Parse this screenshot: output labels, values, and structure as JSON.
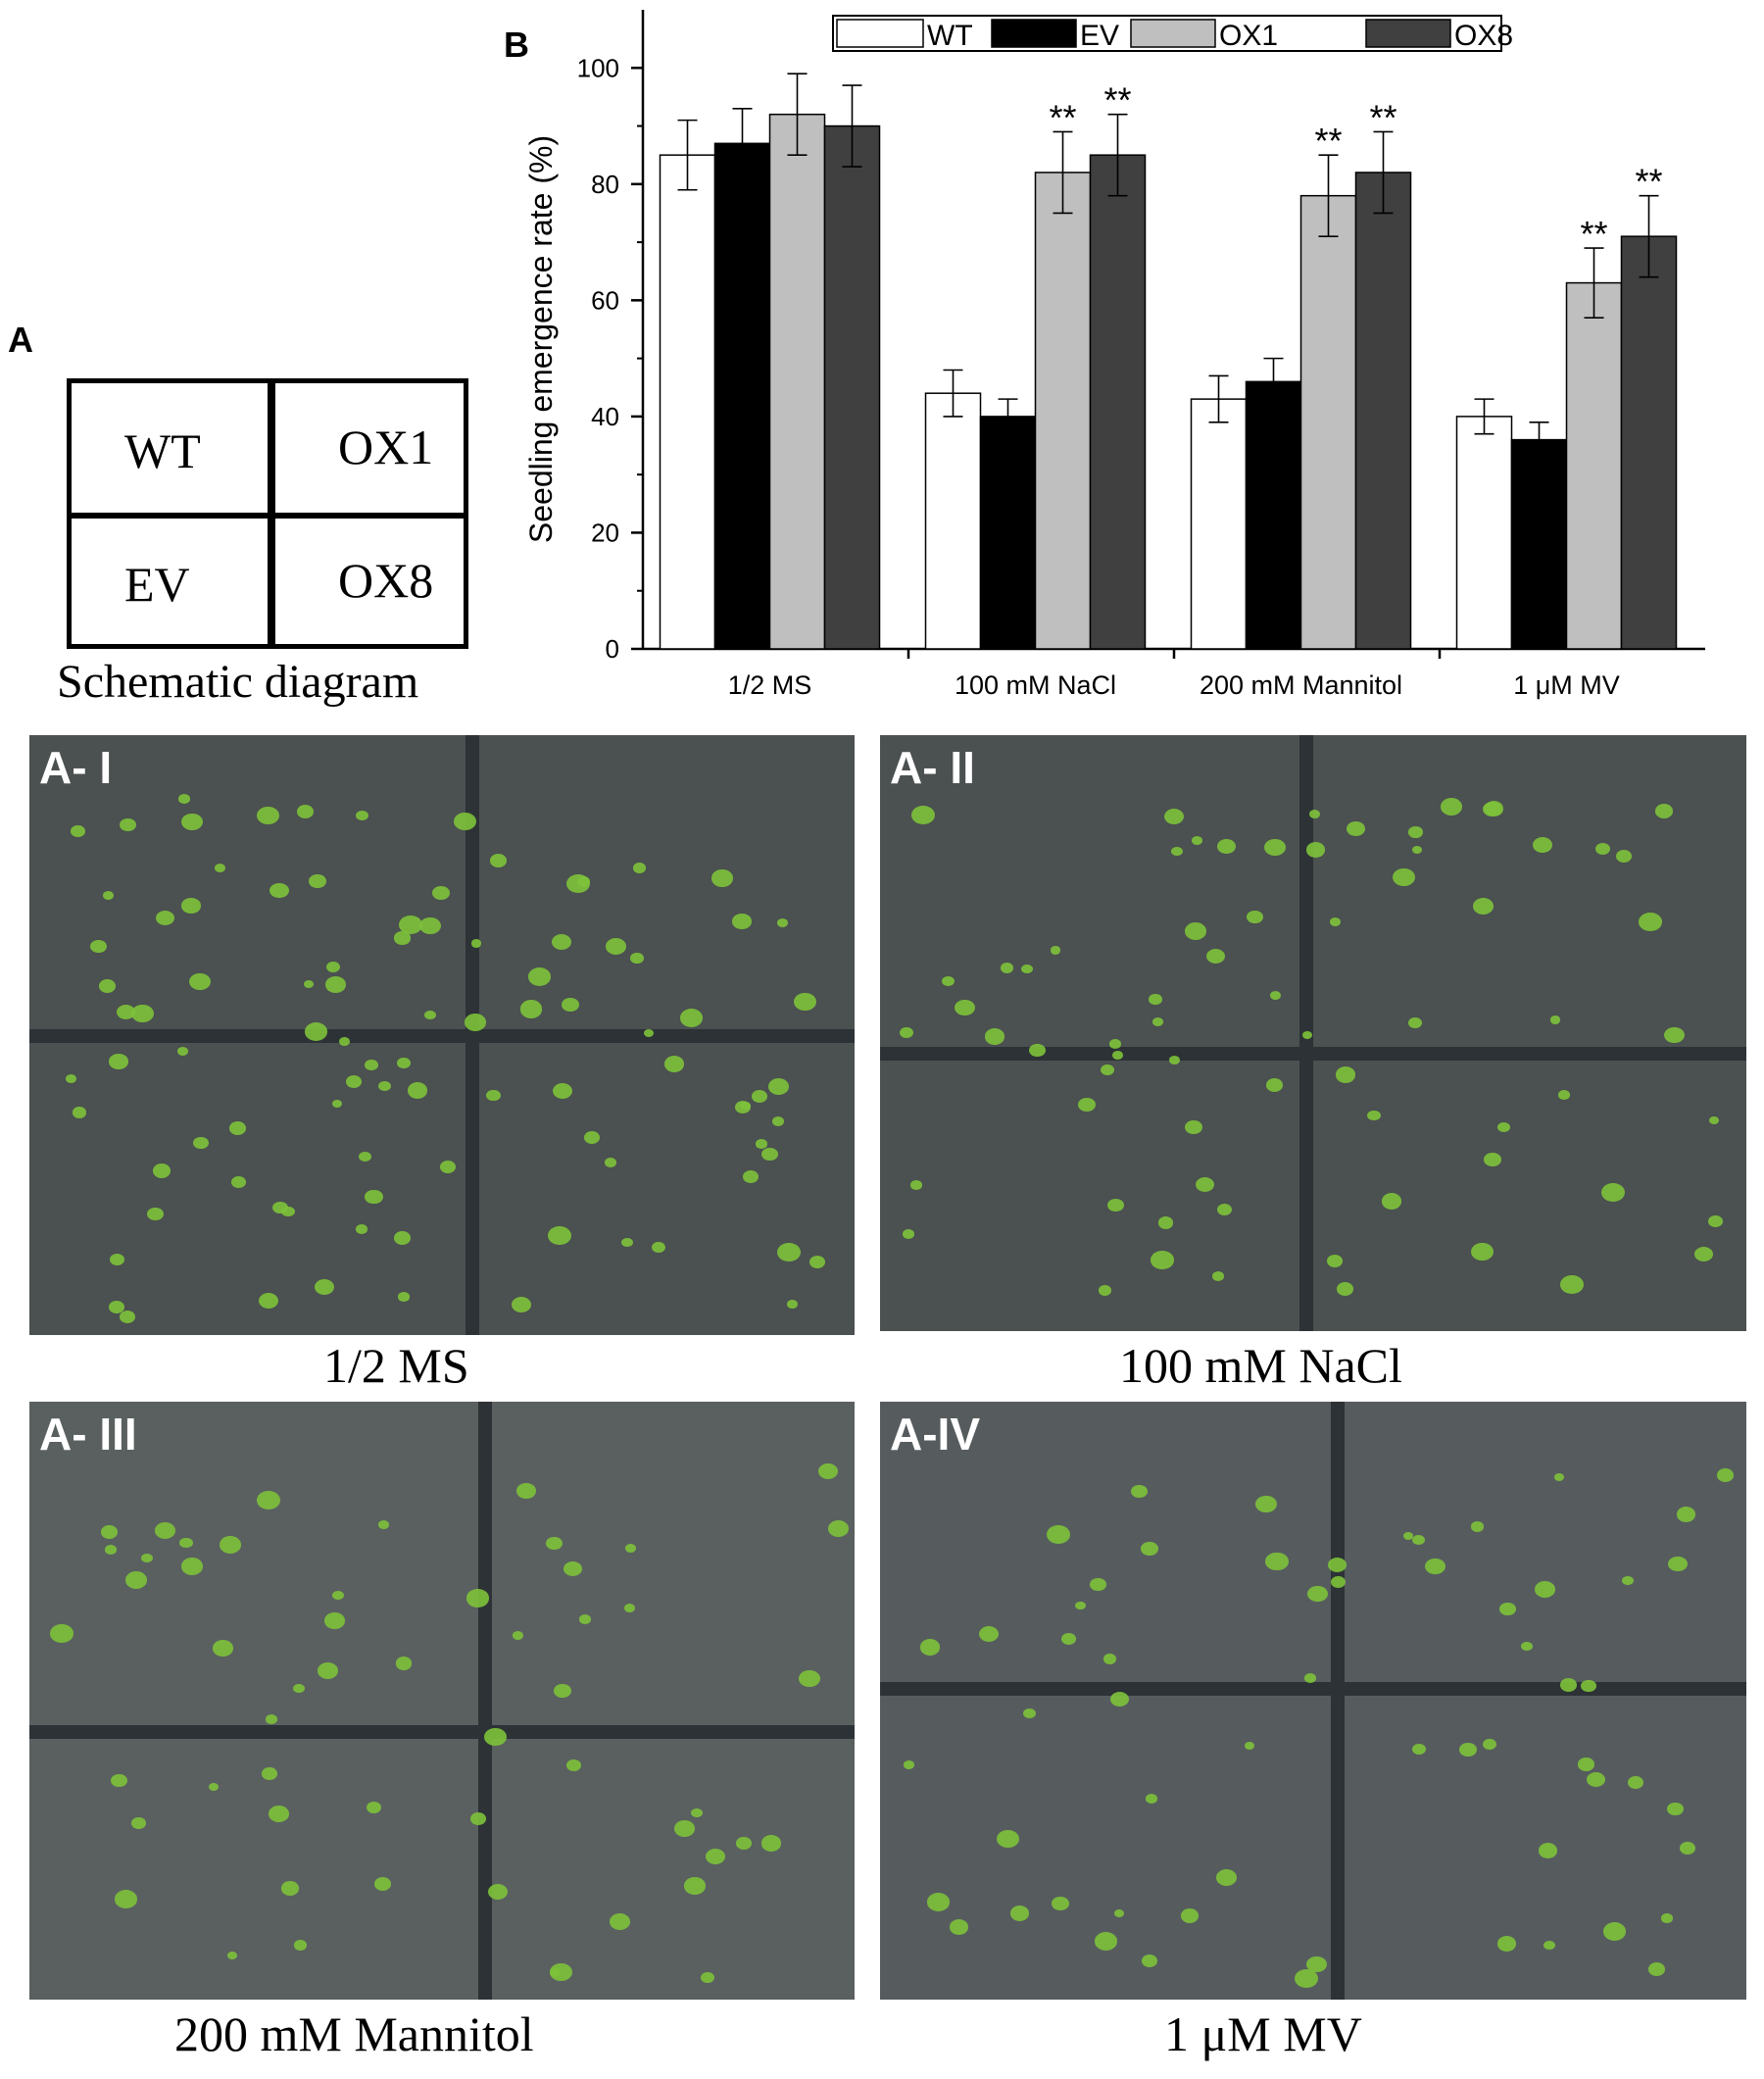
{
  "panel_a": {
    "letter": "A",
    "schematic": {
      "cells": [
        "WT",
        "OX1",
        "EV",
        "OX8"
      ],
      "caption": "Schematic diagram"
    }
  },
  "panel_b": {
    "letter": "B"
  },
  "photos": [
    {
      "tag": "A- I",
      "caption": "1/2 MS"
    },
    {
      "tag": "A- II",
      "caption": "100 mM NaCl"
    },
    {
      "tag": "A- III",
      "caption": "200 mM Mannitol"
    },
    {
      "tag": "A-IV",
      "caption": "1 μM MV"
    }
  ],
  "colors": {
    "WT": "#ffffff",
    "EV": "#000000",
    "OX1": "#bfbfbf",
    "OX8": "#404040",
    "plate": "#4b5050",
    "seedling": "#7dc23a"
  },
  "chart_data": {
    "type": "bar",
    "categories": [
      "1/2 MS",
      "100 mM NaCl",
      "200 mM Mannitol",
      "1 μM MV"
    ],
    "series": [
      {
        "name": "WT",
        "values": [
          85,
          44,
          43,
          40
        ],
        "errors": [
          6,
          4,
          4,
          3
        ],
        "marks": [
          "",
          "",
          "",
          ""
        ]
      },
      {
        "name": "EV",
        "values": [
          87,
          40,
          46,
          36
        ],
        "errors": [
          6,
          3,
          4,
          3
        ],
        "marks": [
          "",
          "",
          "",
          ""
        ]
      },
      {
        "name": "OX1",
        "values": [
          92,
          82,
          78,
          63
        ],
        "errors": [
          7,
          7,
          7,
          6
        ],
        "marks": [
          "",
          "**",
          "**",
          "**"
        ]
      },
      {
        "name": "OX8",
        "values": [
          90,
          85,
          82,
          71
        ],
        "errors": [
          7,
          7,
          7,
          7
        ],
        "marks": [
          "",
          "**",
          "**",
          "**"
        ]
      }
    ],
    "ylabel": "Seedling emergence rate (%)",
    "xlabel": "",
    "ylim": [
      0,
      110
    ],
    "yticks": [
      0,
      20,
      40,
      60,
      80,
      100
    ],
    "legend_position": "top",
    "grid": false
  }
}
